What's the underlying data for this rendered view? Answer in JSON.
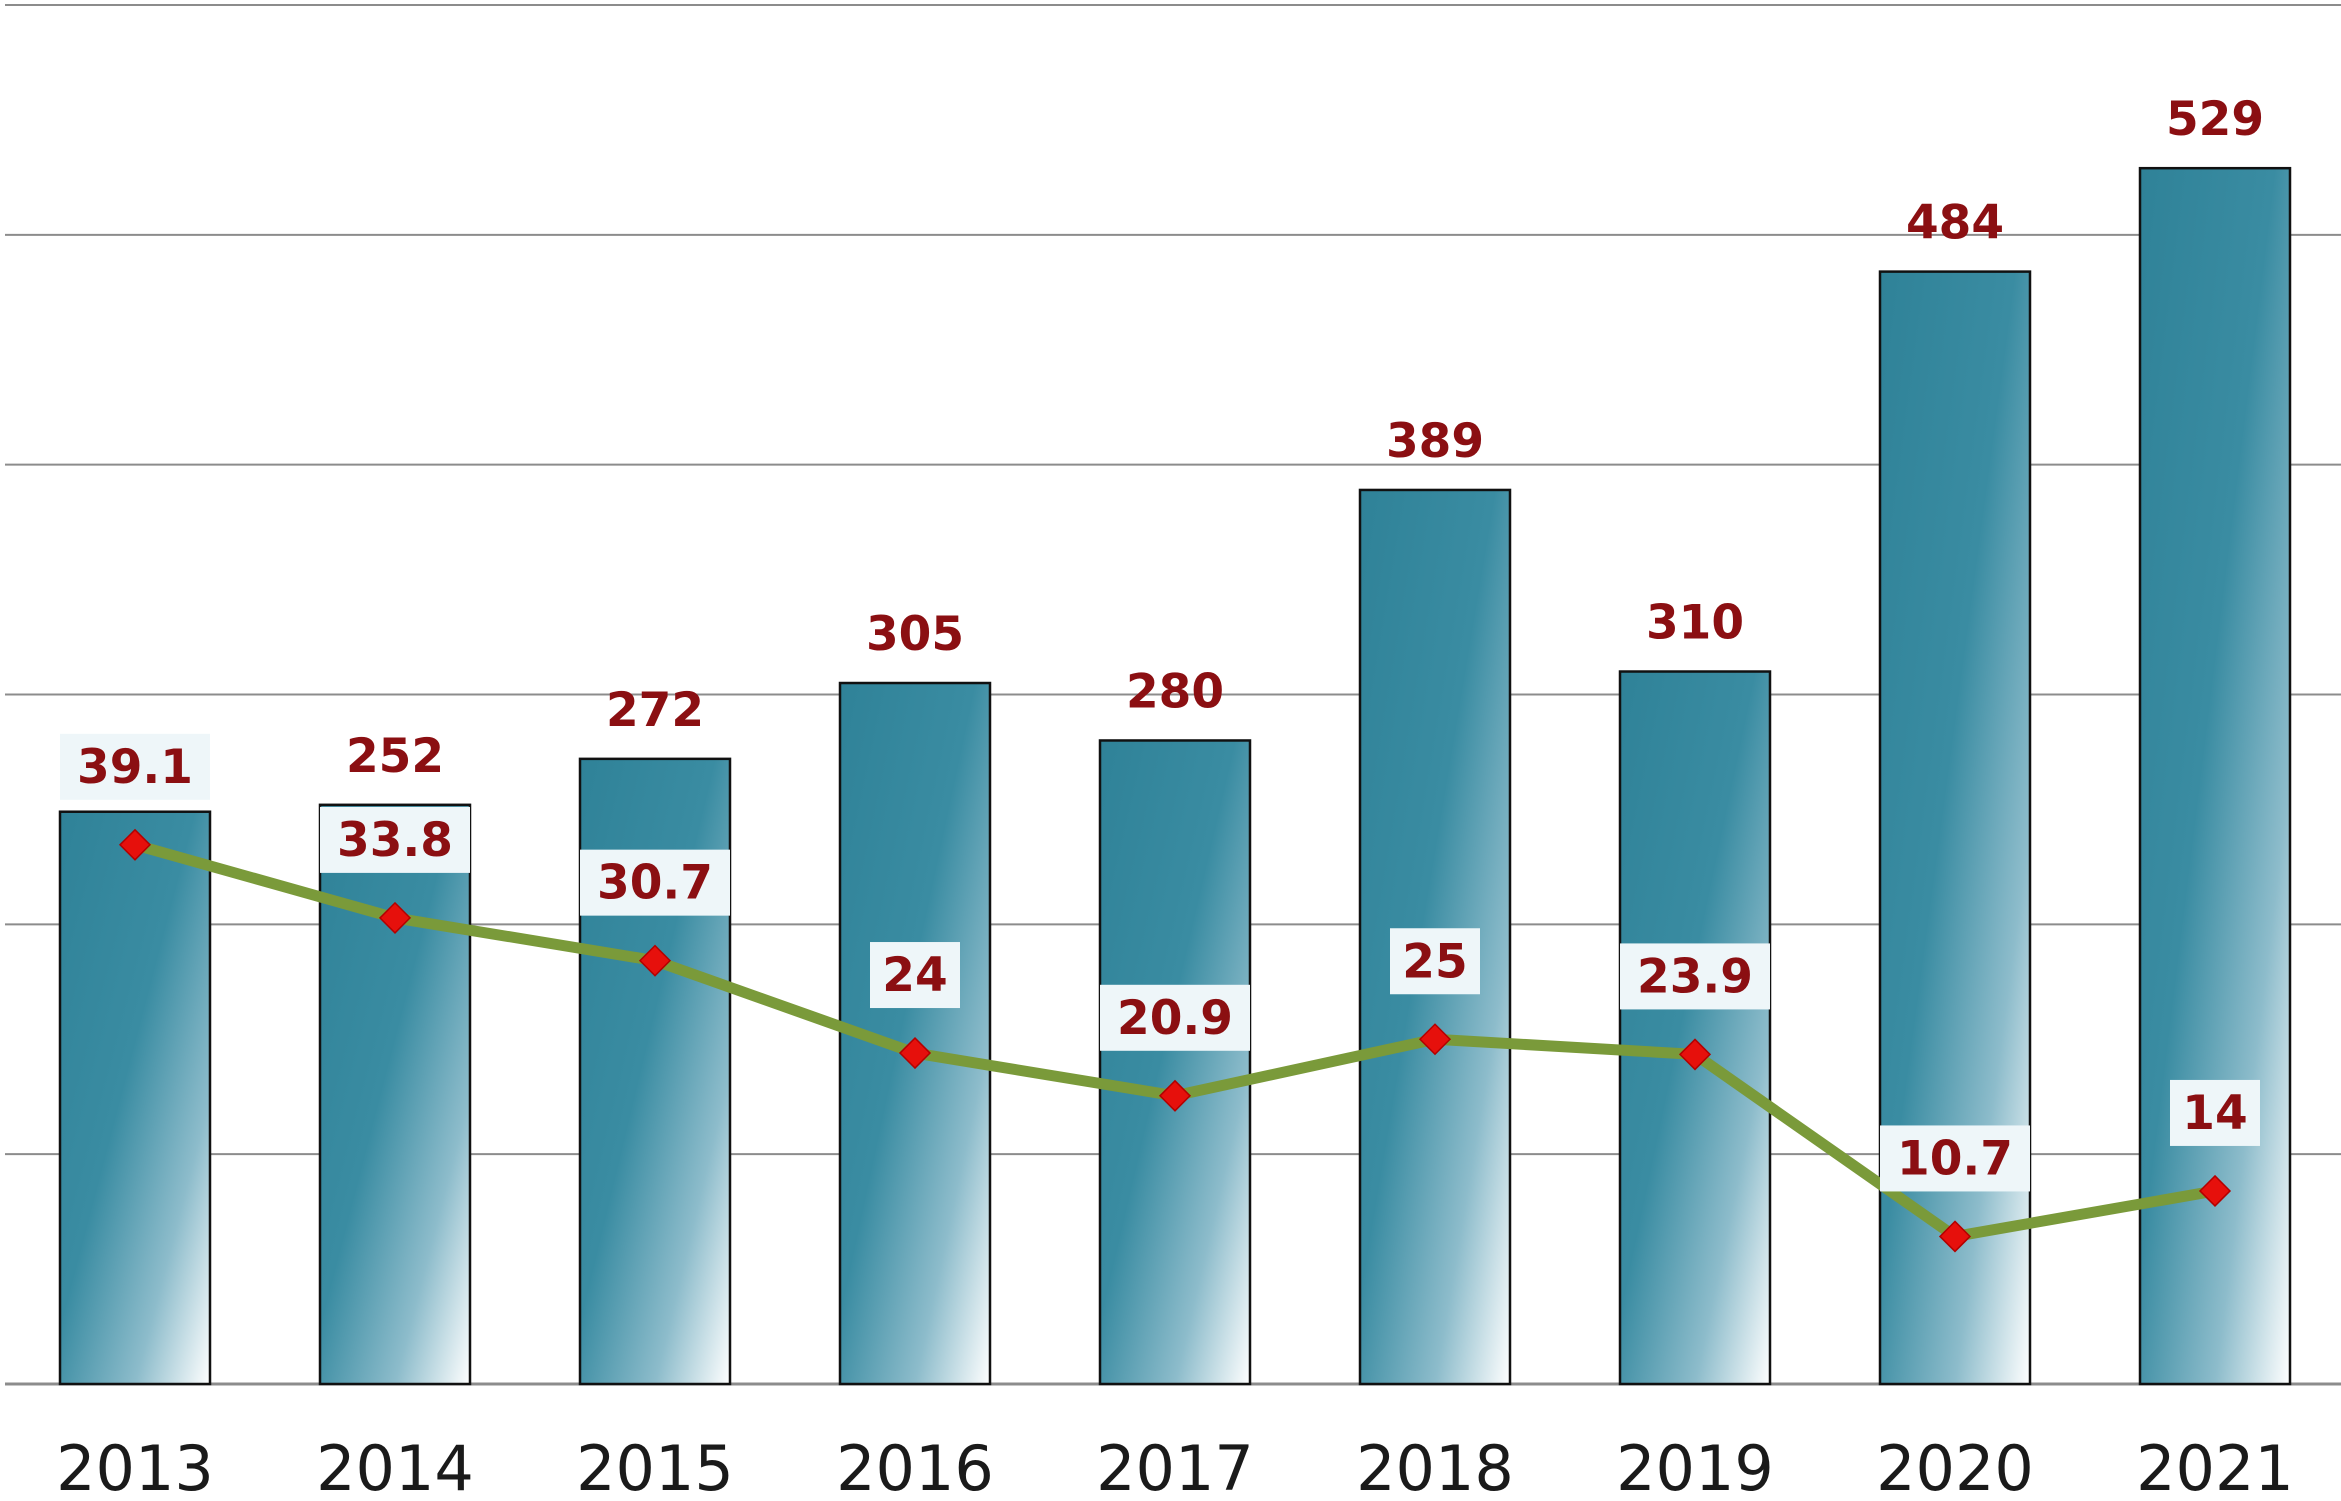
{
  "chart_data": {
    "type": "bar",
    "categories": [
      "2013",
      "2014",
      "2015",
      "2016",
      "2017",
      "2018",
      "2019",
      "2020",
      "2021"
    ],
    "series": [
      {
        "type": "bar",
        "values": [
          249,
          252,
          272,
          305,
          280,
          389,
          310,
          484,
          529
        ]
      },
      {
        "type": "line",
        "values": [
          39.1,
          33.8,
          30.7,
          24,
          20.9,
          25,
          23.9,
          10.7,
          14
        ]
      }
    ],
    "bar_ylim": [
      0,
      600
    ],
    "line_ylim": [
      0,
      100
    ],
    "grid": true,
    "colors": {
      "bar": "#2f8298",
      "line": "#7a9a3a",
      "marker": "#e6100c",
      "value_text": "#8b0f12",
      "label_box": "#eef6f9",
      "grid": "#8c8c8c"
    }
  }
}
